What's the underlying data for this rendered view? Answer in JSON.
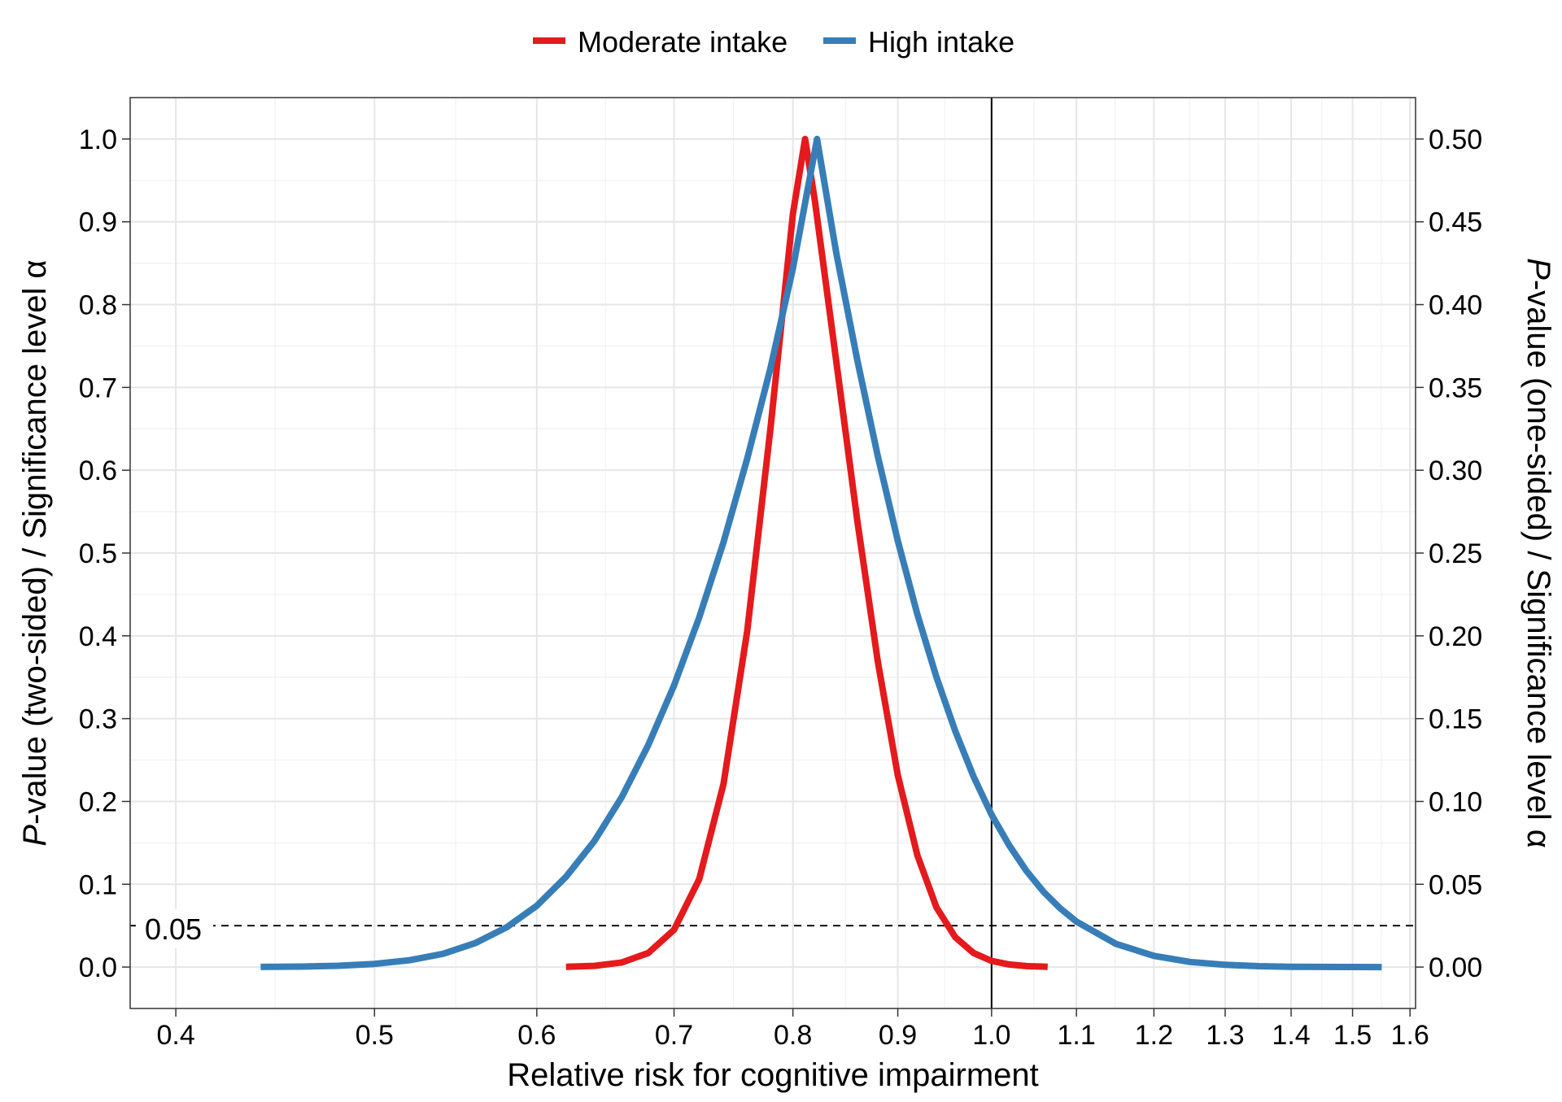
{
  "chart_data": {
    "type": "line",
    "title": "",
    "xlabel": "Relative risk for cognitive impairment",
    "ylabel_left_italic": "P",
    "ylabel_left_rest": "-value (two-sided) / Significance level α",
    "ylabel_right_italic": "P",
    "ylabel_right_rest": "-value (one-sided) / Significance level α",
    "x_scale": "log",
    "xlim": [
      0.38,
      1.61
    ],
    "ylim": [
      -0.05,
      1.05
    ],
    "x_ticks": [
      0.4,
      0.5,
      0.6,
      0.7,
      0.8,
      0.9,
      1.0,
      1.1,
      1.2,
      1.3,
      1.4,
      1.5,
      1.6
    ],
    "x_tick_labels": [
      "0.4",
      "0.5",
      "0.6",
      "0.7",
      "0.8",
      "0.9",
      "1.0",
      "1.1",
      "1.2",
      "1.3",
      "1.4",
      "1.5",
      "1.6"
    ],
    "y_ticks": [
      0.0,
      0.1,
      0.2,
      0.3,
      0.4,
      0.5,
      0.6,
      0.7,
      0.8,
      0.9,
      1.0
    ],
    "y_tick_labels": [
      "0.0",
      "0.1",
      "0.2",
      "0.3",
      "0.4",
      "0.5",
      "0.6",
      "0.7",
      "0.8",
      "0.9",
      "1.0"
    ],
    "y2_tick_labels": [
      "0.00",
      "0.05",
      "0.10",
      "0.15",
      "0.20",
      "0.25",
      "0.30",
      "0.35",
      "0.40",
      "0.45",
      "0.50"
    ],
    "grid": true,
    "legend_position": "top",
    "reference_line_x": 1.0,
    "reference_line_y": 0.05,
    "reference_label": "0.05",
    "series": [
      {
        "name": "Moderate intake",
        "color": "#e41a1c",
        "x": [
          0.62,
          0.64,
          0.66,
          0.68,
          0.7,
          0.72,
          0.74,
          0.76,
          0.78,
          0.8,
          0.811,
          0.82,
          0.84,
          0.86,
          0.88,
          0.9,
          0.92,
          0.94,
          0.96,
          0.98,
          1.0,
          1.02,
          1.04,
          1.065
        ],
        "y": [
          0.0003,
          0.0015,
          0.0055,
          0.017,
          0.045,
          0.106,
          0.221,
          0.406,
          0.65,
          0.91,
          1.0,
          0.925,
          0.731,
          0.539,
          0.369,
          0.232,
          0.135,
          0.072,
          0.036,
          0.017,
          0.0075,
          0.0031,
          0.0012,
          0.0003
        ]
      },
      {
        "name": "High intake",
        "color": "#377eb8",
        "x": [
          0.44,
          0.46,
          0.48,
          0.5,
          0.52,
          0.54,
          0.56,
          0.58,
          0.6,
          0.62,
          0.64,
          0.66,
          0.68,
          0.7,
          0.72,
          0.74,
          0.76,
          0.78,
          0.8,
          0.822,
          0.84,
          0.86,
          0.88,
          0.9,
          0.92,
          0.94,
          0.96,
          0.98,
          1.0,
          1.02,
          1.04,
          1.06,
          1.08,
          1.1,
          1.15,
          1.2,
          1.25,
          1.3,
          1.35,
          1.4,
          1.45,
          1.5,
          1.55
        ],
        "y": [
          0.0002,
          0.0006,
          0.0016,
          0.0038,
          0.0082,
          0.016,
          0.029,
          0.048,
          0.074,
          0.109,
          0.152,
          0.205,
          0.268,
          0.34,
          0.422,
          0.513,
          0.614,
          0.723,
          0.844,
          1.0,
          0.862,
          0.733,
          0.617,
          0.515,
          0.426,
          0.35,
          0.285,
          0.23,
          0.184,
          0.147,
          0.116,
          0.091,
          0.071,
          0.055,
          0.028,
          0.0135,
          0.0062,
          0.0027,
          0.0011,
          0.0004,
          0.0002,
          0.0001,
          0.0
        ]
      }
    ]
  }
}
